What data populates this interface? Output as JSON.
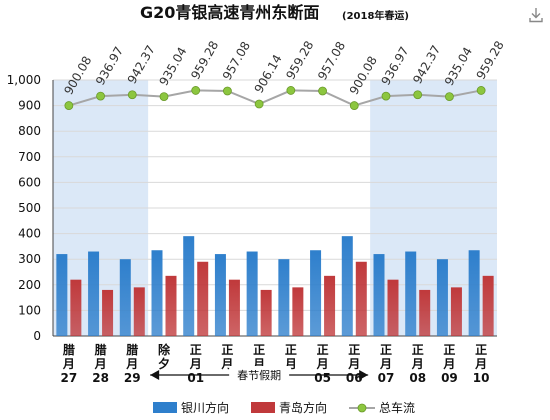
{
  "chart_data": {
    "type": "bar",
    "title": "G20青银高速青州东断面",
    "subtitle": "(2018年春运)",
    "categories": [
      "腊月27",
      "腊月28",
      "腊月29",
      "除夕",
      "正月01",
      "正月02",
      "正月03",
      "正月04",
      "正月05",
      "正月06",
      "正月07",
      "正月08",
      "正月09",
      "正月10"
    ],
    "category_lines": [
      [
        "腊",
        "月",
        "27"
      ],
      [
        "腊",
        "月",
        "28"
      ],
      [
        "腊",
        "月",
        "29"
      ],
      [
        "除",
        "夕",
        ""
      ],
      [
        "正",
        "月",
        "01"
      ],
      [
        "正",
        "月",
        ""
      ],
      [
        "正",
        "月",
        ""
      ],
      [
        "正",
        "月",
        ""
      ],
      [
        "正",
        "月",
        "05"
      ],
      [
        "正",
        "月",
        "06"
      ],
      [
        "正",
        "月",
        "07"
      ],
      [
        "正",
        "月",
        "08"
      ],
      [
        "正",
        "月",
        "09"
      ],
      [
        "正",
        "月",
        "10"
      ]
    ],
    "series": [
      {
        "name": "银川方向",
        "kind": "bar",
        "color": "#2e7fcc",
        "values": [
          320,
          330,
          300,
          335,
          390,
          320,
          330,
          300,
          335,
          390,
          320,
          330,
          300,
          335
        ]
      },
      {
        "name": "青岛方向",
        "kind": "bar",
        "color": "#c0393b",
        "values": [
          220,
          180,
          190,
          235,
          290,
          220,
          180,
          190,
          235,
          290,
          220,
          180,
          190,
          235
        ]
      },
      {
        "name": "总车流",
        "kind": "line",
        "color": "#a6a6a6",
        "marker_color": "#8cc63f",
        "values": [
          900.08,
          936.97,
          942.37,
          935.04,
          959.28,
          957.08,
          906.14,
          959.28,
          957.08,
          900.08,
          936.97,
          942.37,
          935.04,
          959.28
        ],
        "labels": [
          "900.08",
          "936.97",
          "942.37",
          "935.04",
          "959.28",
          "957.08",
          "906.14",
          "959.28",
          "957.08",
          "900.08",
          "936.97",
          "942.37",
          "935.04",
          "959.28"
        ]
      }
    ],
    "ylim": [
      0,
      1000
    ],
    "yticks": [
      0,
      100,
      200,
      300,
      400,
      500,
      600,
      700,
      800,
      900,
      1000
    ],
    "ytick_labels": [
      "0",
      "100",
      "200",
      "300",
      "400",
      "500",
      "600",
      "700",
      "800",
      "900",
      "1,000"
    ],
    "grid": true,
    "shaded_ranges": [
      [
        0,
        2
      ],
      [
        10,
        13
      ]
    ],
    "shade_color": "#dbe8f7",
    "annotation": {
      "text": "春节假期",
      "from_index": 3,
      "to_index": 9
    },
    "legend_position": "bottom"
  },
  "icons": {
    "download": "download-icon"
  }
}
